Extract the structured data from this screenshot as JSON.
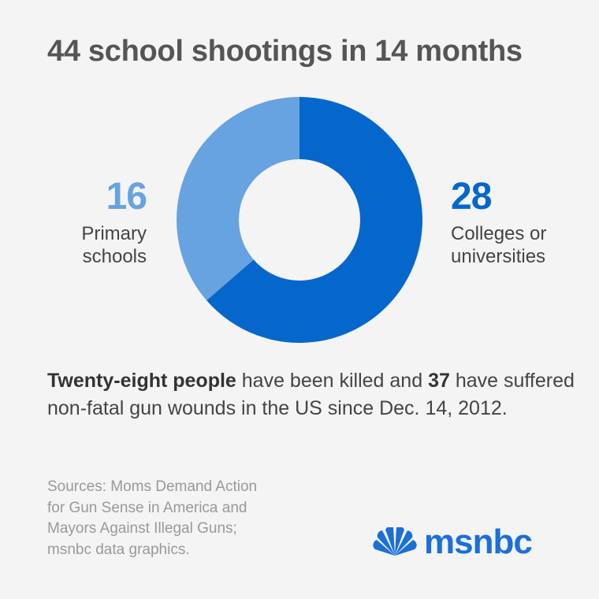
{
  "title": "44 school shootings in 14 months",
  "chart_data": {
    "type": "pie",
    "title": "44 school shootings in 14 months",
    "slices": [
      {
        "label": "Colleges or universities",
        "value": 28,
        "color": "#0567cc"
      },
      {
        "label": "Primary schools",
        "value": 16,
        "color": "#66a3e0"
      }
    ],
    "total": 44
  },
  "left_label": {
    "number": "16",
    "line1": "Primary",
    "line2": "schools"
  },
  "right_label": {
    "number": "28",
    "line1": "Colleges or",
    "line2": "universities"
  },
  "statement": {
    "bold1": "Twenty-eight people",
    "text1": " have been killed and ",
    "bold2": "37",
    "text2": " have suffered non-fatal gun wounds in the US since Dec. 14, 2012."
  },
  "sources": {
    "line1": "Sources: Moms Demand Action",
    "line2": "for Gun Sense in America and",
    "line3": "Mayors Against Illegal Guns;",
    "line4": "msnbc data graphics."
  },
  "logo": {
    "text": "msnbc",
    "icon": "peacock-icon"
  },
  "colors": {
    "background": "#f4f4f4",
    "dark_blue": "#0567cc",
    "light_blue": "#66a3e0",
    "title_gray": "#555555",
    "source_gray": "#999999",
    "peacock_blue": "#1b6fd8"
  }
}
